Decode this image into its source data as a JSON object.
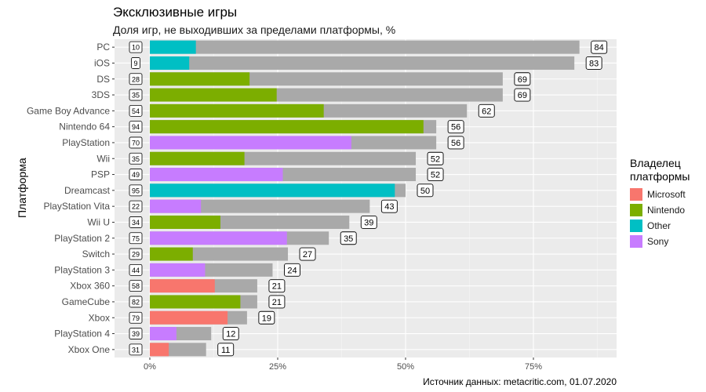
{
  "chart_data": {
    "type": "bar",
    "title": "Эксклюзивные игры",
    "subtitle": "Доля игр, не выходивших за пределами платформы, %",
    "ylabel": "Платформа",
    "caption": "Источник данных: metacritic.com, 01.07.2020",
    "xlim": [
      -0.04,
      0.9
    ],
    "x_ticks": [
      {
        "value": 0,
        "label": "0%"
      },
      {
        "value": 0.25,
        "label": "25%"
      },
      {
        "value": 0.5,
        "label": "50%"
      },
      {
        "value": 0.75,
        "label": "75%"
      }
    ],
    "legend": {
      "title": "Владелец\nплатформы",
      "position": "right",
      "entries": [
        {
          "name": "Microsoft",
          "color": "#F8766D"
        },
        {
          "name": "Nintendo",
          "color": "#7CAE00"
        },
        {
          "name": "Other",
          "color": "#00BFC4"
        },
        {
          "name": "Sony",
          "color": "#C77CFF"
        }
      ]
    },
    "total_color": "#A9A9A9",
    "platforms": [
      {
        "name": "PC",
        "owner": "Other",
        "exclusive_pct": 84,
        "exclusive_count": 10,
        "owner_share": 0.09
      },
      {
        "name": "iOS",
        "owner": "Other",
        "exclusive_pct": 83,
        "exclusive_count": 9,
        "owner_share": 0.077
      },
      {
        "name": "DS",
        "owner": "Nintendo",
        "exclusive_pct": 69,
        "exclusive_count": 28,
        "owner_share": 0.195
      },
      {
        "name": "3DS",
        "owner": "Nintendo",
        "exclusive_pct": 69,
        "exclusive_count": 35,
        "owner_share": 0.248
      },
      {
        "name": "Game Boy Advance",
        "owner": "Nintendo",
        "exclusive_pct": 62,
        "exclusive_count": 54,
        "owner_share": 0.34
      },
      {
        "name": "Nintendo 64",
        "owner": "Nintendo",
        "exclusive_pct": 56,
        "exclusive_count": 94,
        "owner_share": 0.535
      },
      {
        "name": "PlayStation",
        "owner": "Sony",
        "exclusive_pct": 56,
        "exclusive_count": 70,
        "owner_share": 0.394
      },
      {
        "name": "Wii",
        "owner": "Nintendo",
        "exclusive_pct": 52,
        "exclusive_count": 35,
        "owner_share": 0.185
      },
      {
        "name": "PSP",
        "owner": "Sony",
        "exclusive_pct": 52,
        "exclusive_count": 49,
        "owner_share": 0.26
      },
      {
        "name": "Dreamcast",
        "owner": "Other",
        "exclusive_pct": 50,
        "exclusive_count": 95,
        "owner_share": 0.479
      },
      {
        "name": "PlayStation Vita",
        "owner": "Sony",
        "exclusive_pct": 43,
        "exclusive_count": 22,
        "owner_share": 0.1
      },
      {
        "name": "Wii U",
        "owner": "Nintendo",
        "exclusive_pct": 39,
        "exclusive_count": 34,
        "owner_share": 0.138
      },
      {
        "name": "PlayStation 2",
        "owner": "Sony",
        "exclusive_pct": 35,
        "exclusive_count": 75,
        "owner_share": 0.268
      },
      {
        "name": "Switch",
        "owner": "Nintendo",
        "exclusive_pct": 27,
        "exclusive_count": 29,
        "owner_share": 0.084
      },
      {
        "name": "PlayStation 3",
        "owner": "Sony",
        "exclusive_pct": 24,
        "exclusive_count": 44,
        "owner_share": 0.108
      },
      {
        "name": "Xbox 360",
        "owner": "Microsoft",
        "exclusive_pct": 21,
        "exclusive_count": 58,
        "owner_share": 0.127
      },
      {
        "name": "GameCube",
        "owner": "Nintendo",
        "exclusive_pct": 21,
        "exclusive_count": 82,
        "owner_share": 0.177
      },
      {
        "name": "Xbox",
        "owner": "Microsoft",
        "exclusive_pct": 19,
        "exclusive_count": 79,
        "owner_share": 0.152
      },
      {
        "name": "PlayStation 4",
        "owner": "Sony",
        "exclusive_pct": 12,
        "exclusive_count": 39,
        "owner_share": 0.052
      },
      {
        "name": "Xbox One",
        "owner": "Microsoft",
        "exclusive_pct": 11,
        "exclusive_count": 31,
        "owner_share": 0.037
      }
    ]
  }
}
